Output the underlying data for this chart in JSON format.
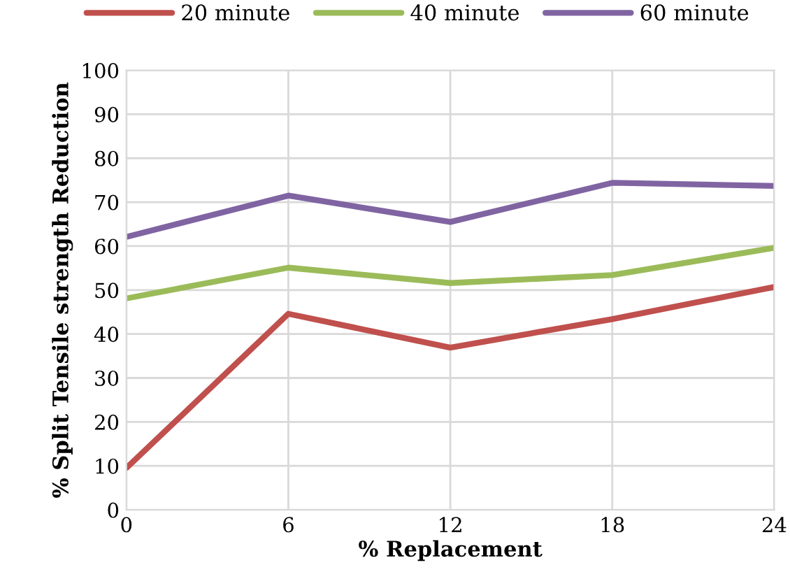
{
  "chart_data": {
    "type": "line",
    "xlabel": "% Replacement",
    "ylabel": "% Split Tensile strength Reduction",
    "x": [
      0,
      6,
      12,
      18,
      24
    ],
    "series": [
      {
        "name": "20 minute",
        "color": "#c0504d",
        "values": [
          9.5,
          44.6,
          36.9,
          43.4,
          50.7
        ]
      },
      {
        "name": "40 minute",
        "color": "#9bbb59",
        "values": [
          48.1,
          55.1,
          51.6,
          53.4,
          59.6
        ]
      },
      {
        "name": "60 minute",
        "color": "#8064a2",
        "values": [
          62.1,
          71.5,
          65.5,
          74.4,
          73.7
        ]
      }
    ],
    "xlim": [
      0,
      24
    ],
    "xticks": [
      0,
      6,
      12,
      18,
      24
    ],
    "ylim": [
      0,
      100
    ],
    "yticks": [
      0,
      10,
      20,
      30,
      40,
      50,
      60,
      70,
      80,
      90,
      100
    ],
    "grid": true,
    "legend": "top",
    "marker": "none",
    "line_style": "solid"
  }
}
